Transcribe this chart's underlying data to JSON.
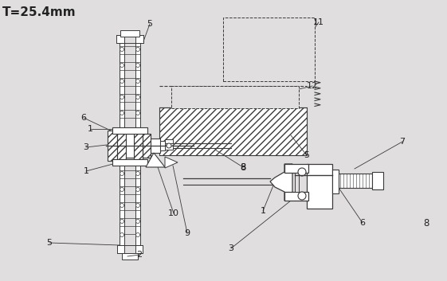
{
  "bg_color": "#e0dede",
  "line_color": "#3a3a3a",
  "text_color": "#222222",
  "figsize": [
    5.61,
    3.53
  ],
  "dpi": 100
}
